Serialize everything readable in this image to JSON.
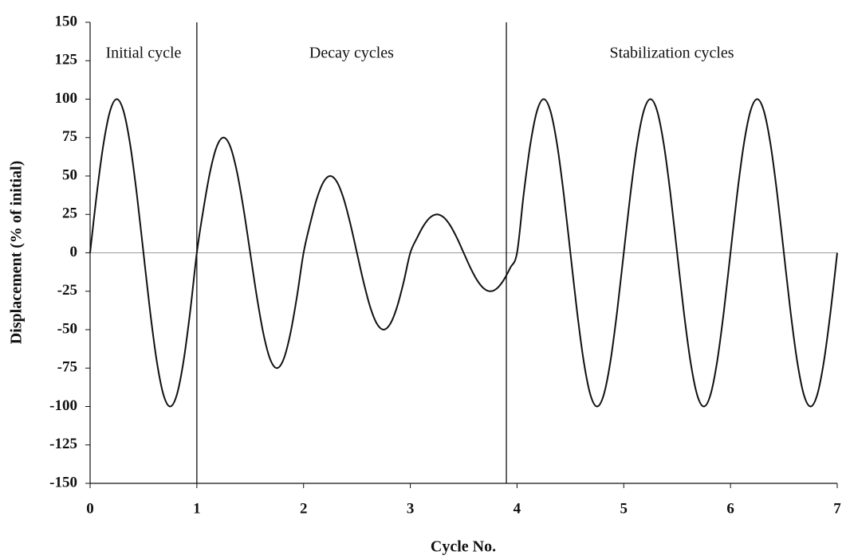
{
  "chart_data": {
    "type": "line",
    "xlabel": "Cycle No.",
    "ylabel": "Displacement (% of initial)",
    "x": [
      0,
      0.0625,
      0.125,
      0.1875,
      0.25,
      0.3125,
      0.375,
      0.4375,
      0.5,
      0.5625,
      0.625,
      0.6875,
      0.75,
      0.8125,
      0.875,
      0.9375,
      1,
      1.0625,
      1.125,
      1.1875,
      1.25,
      1.3125,
      1.375,
      1.4375,
      1.5,
      1.5625,
      1.625,
      1.6875,
      1.75,
      1.8125,
      1.875,
      1.9375,
      2,
      2.0625,
      2.125,
      2.1875,
      2.25,
      2.3125,
      2.375,
      2.4375,
      2.5,
      2.5625,
      2.625,
      2.6875,
      2.75,
      2.8125,
      2.875,
      2.9375,
      3,
      3.0625,
      3.125,
      3.1875,
      3.25,
      3.3125,
      3.375,
      3.4375,
      3.5,
      3.5625,
      3.625,
      3.6875,
      3.75,
      3.8125,
      3.875,
      3.9375,
      4,
      4.0625,
      4.125,
      4.1875,
      4.25,
      4.3125,
      4.375,
      4.4375,
      4.5,
      4.5625,
      4.625,
      4.6875,
      4.75,
      4.8125,
      4.875,
      4.9375,
      5,
      5.0625,
      5.125,
      5.1875,
      5.25,
      5.3125,
      5.375,
      5.4375,
      5.5,
      5.5625,
      5.625,
      5.6875,
      5.75,
      5.8125,
      5.875,
      5.9375,
      6,
      6.0625,
      6.125,
      6.1875,
      6.25,
      6.3125,
      6.375,
      6.4375,
      6.5,
      6.5625,
      6.625,
      6.6875,
      6.75,
      6.8125,
      6.875,
      6.9375,
      7
    ],
    "series": [
      {
        "color": "#111111",
        "values": [
          0,
          38.3,
          70.7,
          92.4,
          100,
          92.4,
          70.7,
          38.3,
          0,
          -38.3,
          -70.7,
          -92.4,
          -100,
          -92.4,
          -70.7,
          -38.3,
          0,
          28.7,
          53,
          69.3,
          75,
          69.3,
          53,
          28.7,
          0,
          -28.7,
          -53,
          -69.3,
          -75,
          -69.3,
          -53,
          -28.7,
          0,
          19.1,
          35.4,
          46.2,
          50,
          46.2,
          35.4,
          19.1,
          0,
          -19.1,
          -35.4,
          -46.2,
          -50,
          -46.2,
          -35.4,
          -19.1,
          0,
          9.6,
          17.7,
          23.1,
          25,
          23.1,
          17.7,
          9.6,
          0,
          -9.6,
          -17.7,
          -23.1,
          -25,
          -23.1,
          -17.7,
          -9.6,
          0,
          38.3,
          70.7,
          92.4,
          100,
          92.4,
          70.7,
          38.3,
          0,
          -38.3,
          -70.7,
          -92.4,
          -100,
          -92.4,
          -70.7,
          -38.3,
          0,
          38.3,
          70.7,
          92.4,
          100,
          92.4,
          70.7,
          38.3,
          0,
          -38.3,
          -70.7,
          -92.4,
          -100,
          -92.4,
          -70.7,
          -38.3,
          0,
          38.3,
          70.7,
          92.4,
          100,
          92.4,
          70.7,
          38.3,
          0,
          -38.3,
          -70.7,
          -92.4,
          -100,
          -92.4,
          -70.7,
          -38.3,
          0
        ]
      }
    ],
    "regions": [
      {
        "label": "Initial cycle",
        "from": 0,
        "to": 1
      },
      {
        "label": "Decay cycles",
        "from": 1,
        "to": 3.9
      },
      {
        "label": "Stabilization cycles",
        "from": 3.9,
        "to": 7
      }
    ],
    "xlim": [
      0,
      7
    ],
    "xticks": [
      0,
      1,
      2,
      3,
      4,
      5,
      6,
      7
    ],
    "ylim": [
      -150,
      150
    ],
    "yticks": [
      -150,
      -125,
      -100,
      -75,
      -50,
      -25,
      0,
      25,
      50,
      75,
      100,
      125,
      150
    ]
  }
}
